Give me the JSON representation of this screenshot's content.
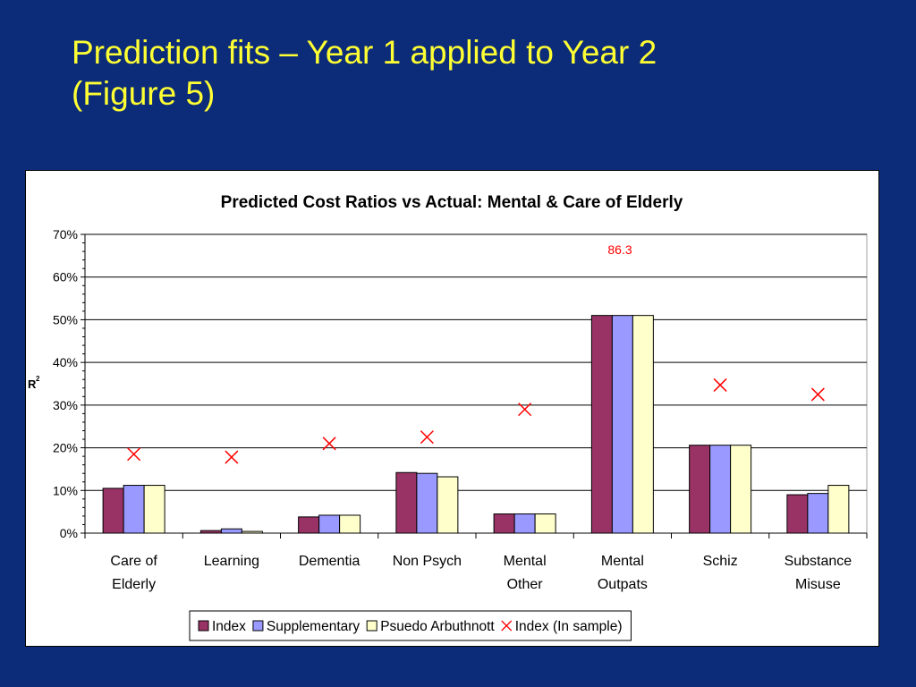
{
  "slide": {
    "title_line1": "Prediction fits – Year 1 applied to Year 2",
    "title_line2": "(Figure 5)"
  },
  "chart_data": {
    "type": "bar",
    "title": "Predicted Cost Ratios vs Actual: Mental & Care of Elderly",
    "ylabel": "R",
    "ylabel_superscript": "2",
    "ylim": [
      0,
      0.7
    ],
    "yticks": [
      "0%",
      "10%",
      "20%",
      "30%",
      "40%",
      "50%",
      "60%",
      "70%"
    ],
    "categories": [
      [
        "Care of",
        "Elderly"
      ],
      [
        "Learning"
      ],
      [
        "Dementia"
      ],
      [
        "Non Psych"
      ],
      [
        "Mental",
        "Other"
      ],
      [
        "Mental",
        "Outpats"
      ],
      [
        "Schiz"
      ],
      [
        "Substance",
        "Misuse"
      ]
    ],
    "series": [
      {
        "name": "Index",
        "color": "#993366",
        "values": [
          0.105,
          0.006,
          0.038,
          0.142,
          0.045,
          0.51,
          0.206,
          0.09
        ]
      },
      {
        "name": "Supplementary",
        "color": "#9999ff",
        "values": [
          0.112,
          0.01,
          0.042,
          0.14,
          0.045,
          0.51,
          0.206,
          0.093
        ]
      },
      {
        "name": "Psuedo Arbuthnott",
        "color": "#ffffcc",
        "values": [
          0.112,
          0.004,
          0.042,
          0.132,
          0.045,
          0.51,
          0.206,
          0.112
        ]
      }
    ],
    "markers": {
      "name": "Index (In sample)",
      "color": "#ff0000",
      "symbol": "x",
      "values": [
        0.185,
        0.178,
        0.21,
        0.225,
        0.29,
        0.863,
        0.347,
        0.325
      ]
    },
    "annotation": "86.3",
    "grid": true,
    "legend_position": "bottom"
  }
}
